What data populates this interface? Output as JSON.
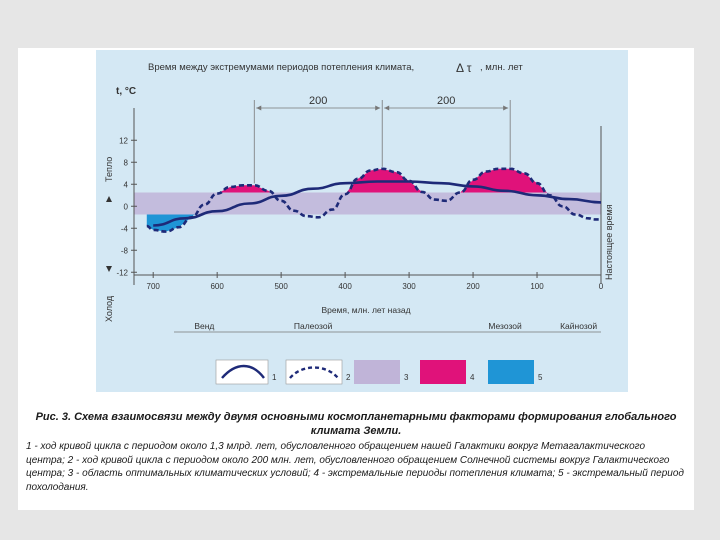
{
  "chart_data": {
    "type": "line",
    "title": "Время между экстремумами периодов потепления климата,",
    "title_symbol": "Δ τ",
    "title_unit": ", млн. лет",
    "ylabel": "t, °C",
    "y_side_warm": "Тепло",
    "y_side_cold": "Холод",
    "right_label": "Настоящее время",
    "xlabel": "Время, млн. лет назад",
    "xlim": [
      730,
      0
    ],
    "ylim": [
      -12.5,
      13.5
    ],
    "x_ticks": [
      "700",
      "600",
      "500",
      "400",
      "300",
      "200",
      "100",
      "0"
    ],
    "y_ticks": [
      "12",
      "8",
      "4",
      "0",
      "-4",
      "-8",
      "-12"
    ],
    "x_tick_values": [
      700,
      600,
      500,
      400,
      300,
      200,
      100,
      0
    ],
    "y_tick_values": [
      12,
      8,
      4,
      0,
      -4,
      -8,
      -12
    ],
    "interval_labels": [
      "200",
      "200"
    ],
    "interval_markers": [
      542,
      342,
      142
    ],
    "optimal_band": [
      -1.5,
      2.5
    ],
    "eras": [
      {
        "label": "Венд",
        "x": 620
      },
      {
        "label": "Палеозой",
        "x": 450
      },
      {
        "label": "Мезозой",
        "x": 150
      },
      {
        "label": "Кайнозой",
        "x": 35
      }
    ],
    "series": [
      {
        "name": "1",
        "style": "solid",
        "color": "#1e2a78",
        "x": [
          700,
          650,
          600,
          550,
          500,
          450,
          400,
          350,
          300,
          250,
          200,
          150,
          100,
          50,
          0
        ],
        "y": [
          -3.5,
          -2.2,
          -0.9,
          0.5,
          1.9,
          3.2,
          4.2,
          4.5,
          4.5,
          4.2,
          3.6,
          2.8,
          2,
          1.3,
          0.7
        ]
      },
      {
        "name": "2",
        "style": "dashed",
        "color": "#1e2a78",
        "x": [
          710,
          700,
          680,
          660,
          640,
          620,
          600,
          580,
          560,
          542,
          520,
          500,
          480,
          460,
          442,
          420,
          400,
          380,
          360,
          342,
          320,
          300,
          280,
          260,
          242,
          220,
          200,
          180,
          160,
          142,
          120,
          100,
          80,
          60,
          40,
          20,
          10,
          0
        ],
        "y": [
          -3.6,
          -4.3,
          -4.6,
          -3.8,
          -2,
          0.3,
          2.3,
          3.5,
          3.8,
          3.8,
          2.8,
          1,
          -0.8,
          -1.8,
          -2,
          -0.6,
          2.2,
          5,
          6.5,
          6.8,
          6.2,
          4.6,
          2.6,
          1.2,
          1,
          2.5,
          4.8,
          6.3,
          6.8,
          6.8,
          6,
          4.2,
          2,
          0,
          -1.5,
          -2.2,
          -2.4,
          -2.4
        ]
      }
    ],
    "legend": {
      "placement": "bottom",
      "items": [
        "1",
        "2",
        "3",
        "4",
        "5"
      ]
    },
    "colors": {
      "band": "#c0b4d8",
      "warm": "#e0127a",
      "cold": "#1f95d6",
      "curve": "#1e2a78",
      "background": "#d4e8f4"
    }
  },
  "caption": {
    "title": "Рис. 3. Схема взаимосвязи между двумя основными космопланетарными факторами формирования глобального климата Земли.",
    "body": "1 - ход кривой цикла с периодом около 1,3 млрд. лет, обусловленного обращением нашей Галактики вокруг Метагалактического центра; 2 - ход кривой цикла с периодом около 200 млн. лет, обусловленного обращением Солнечной системы вокруг Галактического центра; 3 - область оптимальных климатических условий; 4 - экстремальные периоды потепления климата; 5 - экстремальный период похолодания."
  }
}
